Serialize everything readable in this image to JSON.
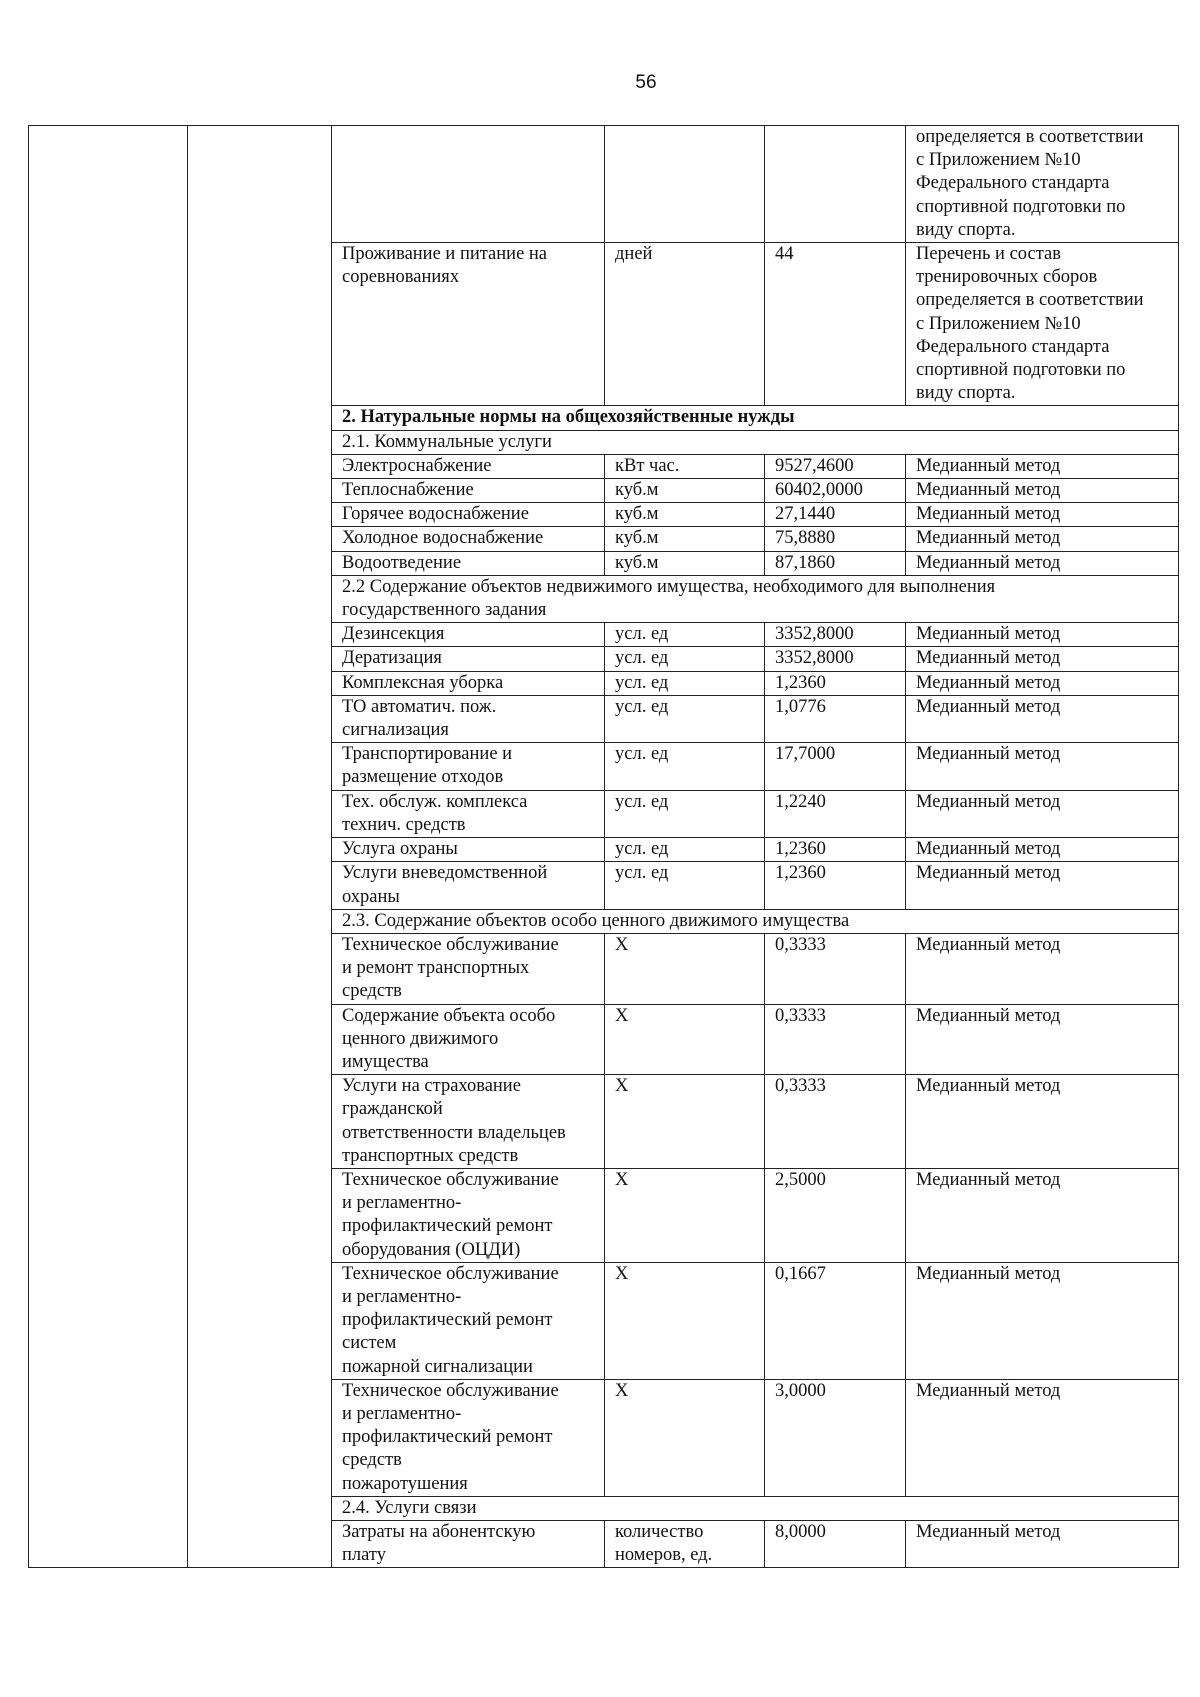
{
  "page_number": "56",
  "rows": [
    {
      "type": "row",
      "name": "",
      "unit": "",
      "value": "",
      "method": "определяется в соответствии\nс Приложением №10\nФедерального стандарта\nспортивной подготовки по\nвиду спорта."
    },
    {
      "type": "row",
      "name": "Проживание и питание на\nсоревнованиях",
      "unit": "дней",
      "value": "44",
      "method": "Перечень и состав\nтренировочных сборов\nопределяется в соответствии\nс Приложением №10\nФедерального стандарта\nспортивной подготовки по\nвиду спорта."
    },
    {
      "type": "section",
      "bold": true,
      "text": "2. Натуральные нормы на общехозяйственные нужды"
    },
    {
      "type": "section",
      "text": "2.1. Коммунальные услуги"
    },
    {
      "type": "row",
      "name": "Электроснабжение",
      "unit": "кВт час.",
      "value": "9527,4600",
      "method": "Медианный метод"
    },
    {
      "type": "row",
      "name": "Теплоснабжение",
      "unit": "куб.м",
      "value": "60402,0000",
      "method": "Медианный метод"
    },
    {
      "type": "row",
      "name": "Горячее водоснабжение",
      "unit": "куб.м",
      "value": "27,1440",
      "method": "Медианный метод"
    },
    {
      "type": "row",
      "name": "Холодное водоснабжение",
      "unit": "куб.м",
      "value": "75,8880",
      "method": "Медианный метод"
    },
    {
      "type": "row",
      "name": "Водоотведение",
      "unit": "куб.м",
      "value": "87,1860",
      "method": "Медианный метод"
    },
    {
      "type": "section",
      "text": "2.2 Содержание объектов недвижимого имущества, необходимого для выполнения\nгосударственного задания"
    },
    {
      "type": "row",
      "name": "Дезинсекция",
      "unit": "усл. ед",
      "value": "3352,8000",
      "method": "Медианный метод"
    },
    {
      "type": "row",
      "name": "Дератизация",
      "unit": "усл. ед",
      "value": "3352,8000",
      "method": "Медианный метод"
    },
    {
      "type": "row",
      "name": "Комплексная уборка",
      "unit": "усл. ед",
      "value": "1,2360",
      "method": "Медианный метод"
    },
    {
      "type": "row",
      "name": "ТО автоматич. пож.\nсигнализация",
      "unit": "усл. ед",
      "value": "1,0776",
      "method": "Медианный метод"
    },
    {
      "type": "row",
      "name": "Транспортирование и\nразмещение отходов",
      "unit": "усл. ед",
      "value": "17,7000",
      "method": "Медианный метод"
    },
    {
      "type": "row",
      "name": "Тех. обслуж. комплекса\nтехнич. средств",
      "unit": "усл. ед",
      "value": "1,2240",
      "method": "Медианный метод"
    },
    {
      "type": "row",
      "name": "Услуга охраны",
      "unit": "усл. ед",
      "value": "1,2360",
      "method": "Медианный метод"
    },
    {
      "type": "row",
      "name": "Услуги вневедомственной\nохраны",
      "unit": "усл. ед",
      "value": "1,2360",
      "method": "Медианный метод"
    },
    {
      "type": "section",
      "text": "2.3. Содержание объектов особо ценного движимого имущества"
    },
    {
      "type": "row",
      "name": "Техническое обслуживание\nи ремонт транспортных\nсредств",
      "unit": "Х",
      "value": "0,3333",
      "method": "Медианный метод"
    },
    {
      "type": "row",
      "name": "Содержание объекта особо\nценного движимого\nимущества",
      "unit": "Х",
      "value": "0,3333",
      "method": "Медианный метод"
    },
    {
      "type": "row",
      "name": "Услуги на страхование\nгражданской\nответственности владельцев\nтранспортных средств",
      "unit": "Х",
      "value": "0,3333",
      "method": "Медианный метод"
    },
    {
      "type": "row",
      "name": "Техническое обслуживание\nи регламентно-\nпрофилактический ремонт\nоборудования (ОЦДИ)",
      "unit": "Х",
      "value": "2,5000",
      "method": "Медианный метод"
    },
    {
      "type": "row",
      "name": "Техническое обслуживание\nи регламентно-\nпрофилактический ремонт\nсистем\nпожарной сигнализации",
      "unit": "Х",
      "value": "0,1667",
      "method": "Медианный метод"
    },
    {
      "type": "row",
      "name": "Техническое обслуживание\nи регламентно-\nпрофилактический ремонт\nсредств\nпожаротушения",
      "unit": "Х",
      "value": "3,0000",
      "method": "Медианный метод"
    },
    {
      "type": "section",
      "text": "2.4. Услуги связи"
    },
    {
      "type": "row",
      "name": "Затраты на абонентскую\nплату",
      "unit": "количество\nномеров, ед.",
      "value": "8,0000",
      "method": "Медианный метод"
    }
  ]
}
